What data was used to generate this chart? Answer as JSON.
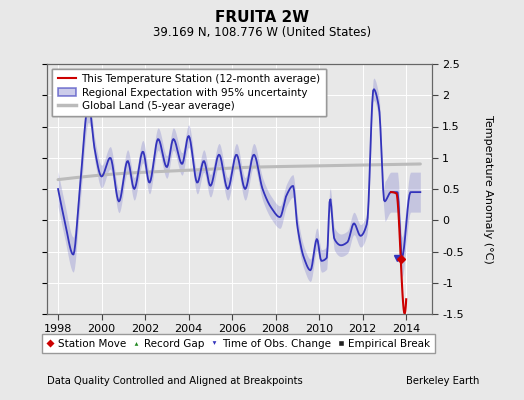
{
  "title": "FRUITA 2W",
  "subtitle": "39.169 N, 108.776 W (United States)",
  "ylabel": "Temperature Anomaly (°C)",
  "xlabel_footer": "Data Quality Controlled and Aligned at Breakpoints",
  "footer_right": "Berkeley Earth",
  "ylim": [
    -1.5,
    2.5
  ],
  "xlim": [
    1997.5,
    2015.2
  ],
  "xticks": [
    1998,
    2000,
    2002,
    2004,
    2006,
    2008,
    2010,
    2012,
    2014
  ],
  "yticks": [
    -1.5,
    -1.0,
    -0.5,
    0.0,
    0.5,
    1.0,
    1.5,
    2.0,
    2.5
  ],
  "bg_color": "#e8e8e8",
  "plot_bg_color": "#e8e8e8",
  "grid_color": "#ffffff",
  "legend_entries": [
    {
      "label": "This Temperature Station (12-month average)",
      "color": "#cc0000",
      "lw": 1.5
    },
    {
      "label": "Regional Expectation with 95% uncertainty",
      "color": "#3333bb",
      "lw": 1.5
    },
    {
      "label": "Global Land (5-year average)",
      "color": "#aaaaaa",
      "lw": 2.5
    }
  ],
  "legend2_entries": [
    {
      "label": "Station Move",
      "marker": "D",
      "color": "#cc0000"
    },
    {
      "label": "Record Gap",
      "marker": "^",
      "color": "#228822"
    },
    {
      "label": "Time of Obs. Change",
      "marker": "v",
      "color": "#3333bb"
    },
    {
      "label": "Empirical Break",
      "marker": "s",
      "color": "#222222"
    }
  ],
  "regional_knots": [
    [
      1998.0,
      0.5
    ],
    [
      1998.3,
      0.0
    ],
    [
      1998.7,
      -0.55
    ],
    [
      1999.0,
      0.5
    ],
    [
      1999.4,
      1.85
    ],
    [
      1999.7,
      1.1
    ],
    [
      2000.0,
      0.7
    ],
    [
      2000.4,
      1.0
    ],
    [
      2000.8,
      0.3
    ],
    [
      2001.2,
      0.95
    ],
    [
      2001.5,
      0.5
    ],
    [
      2001.9,
      1.1
    ],
    [
      2002.2,
      0.6
    ],
    [
      2002.6,
      1.3
    ],
    [
      2003.0,
      0.85
    ],
    [
      2003.3,
      1.3
    ],
    [
      2003.7,
      0.9
    ],
    [
      2004.0,
      1.35
    ],
    [
      2004.4,
      0.6
    ],
    [
      2004.7,
      0.95
    ],
    [
      2005.0,
      0.55
    ],
    [
      2005.4,
      1.05
    ],
    [
      2005.8,
      0.5
    ],
    [
      2006.2,
      1.05
    ],
    [
      2006.6,
      0.5
    ],
    [
      2007.0,
      1.05
    ],
    [
      2007.4,
      0.5
    ],
    [
      2007.8,
      0.2
    ],
    [
      2008.2,
      0.05
    ],
    [
      2008.5,
      0.4
    ],
    [
      2008.8,
      0.55
    ],
    [
      2009.0,
      -0.1
    ],
    [
      2009.3,
      -0.6
    ],
    [
      2009.6,
      -0.8
    ],
    [
      2009.9,
      -0.3
    ],
    [
      2010.1,
      -0.65
    ],
    [
      2010.35,
      -0.6
    ],
    [
      2010.5,
      0.35
    ],
    [
      2010.7,
      -0.3
    ],
    [
      2011.0,
      -0.4
    ],
    [
      2011.3,
      -0.35
    ],
    [
      2011.6,
      -0.05
    ],
    [
      2011.9,
      -0.25
    ],
    [
      2012.2,
      -0.05
    ],
    [
      2012.5,
      2.1
    ],
    [
      2012.75,
      1.8
    ],
    [
      2013.0,
      0.3
    ],
    [
      2013.3,
      0.45
    ],
    [
      2013.6,
      0.45
    ],
    [
      2013.8,
      -0.6
    ],
    [
      2014.2,
      0.45
    ],
    [
      2014.6,
      0.45
    ]
  ],
  "global_land_knots": [
    [
      1998.0,
      0.65
    ],
    [
      2001.0,
      0.75
    ],
    [
      2004.0,
      0.8
    ],
    [
      2007.0,
      0.85
    ],
    [
      2010.0,
      0.87
    ],
    [
      2014.6,
      0.9
    ]
  ],
  "red_line_start": 2013.3,
  "red_line_end": 2014.0,
  "red_line_knots": [
    [
      2013.3,
      0.45
    ],
    [
      2013.55,
      0.43
    ],
    [
      2013.75,
      -0.62
    ]
  ],
  "uncertainty_base": 0.18,
  "uncertainty_wide_before": 1999.5,
  "uncertainty_wide_val": 0.28,
  "uncertainty_wide_after": 2013.0,
  "uncertainty_wide_after_val": 0.32
}
